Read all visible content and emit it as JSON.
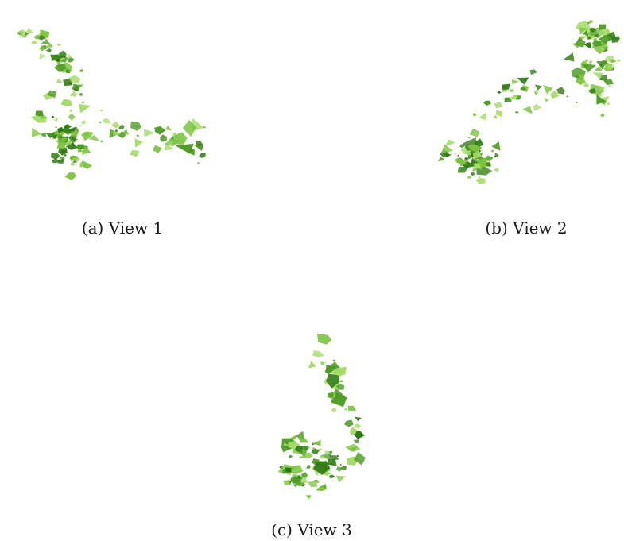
{
  "figure": {
    "panels": [
      {
        "id": "a",
        "caption": "(a) View 1",
        "content": "green-isosurface-render"
      },
      {
        "id": "b",
        "caption": "(b) View 2",
        "content": "green-isosurface-render"
      },
      {
        "id": "c",
        "caption": "(c) View 3",
        "content": "green-isosurface-render"
      }
    ],
    "colors": {
      "surface_dark": "#2f7a12",
      "surface_mid": "#4c9a22",
      "surface_light": "#7cc23d",
      "surface_highlight": "#a5dc6a",
      "background": "#ffffff"
    }
  }
}
